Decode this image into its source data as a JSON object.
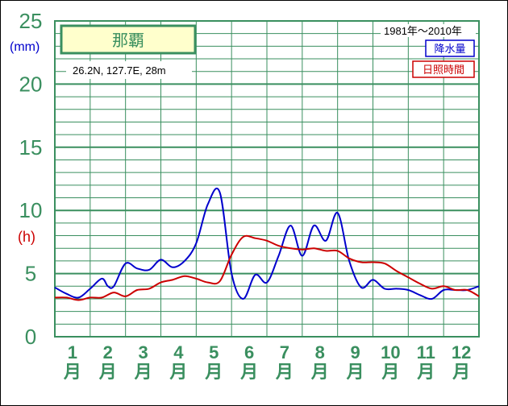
{
  "chart_data": {
    "type": "line",
    "title": "那覇",
    "location": "26.2N,  127.7E,  28m",
    "period": "1981年〜2010年",
    "y_unit_rain": "(mm)",
    "y_unit_sun": "(h)",
    "ylim": [
      0,
      25
    ],
    "yticks": [
      "0",
      "5",
      "10",
      "15",
      "20",
      "25"
    ],
    "month_numbers": [
      "1",
      "2",
      "3",
      "4",
      "5",
      "6",
      "7",
      "8",
      "9",
      "10",
      "11",
      "12"
    ],
    "month_suffix": "月",
    "x_range": [
      1,
      13
    ],
    "grid": true,
    "series": [
      {
        "name": "降水量",
        "color": "#0000cc",
        "x": [
          1,
          1.33,
          1.67,
          2.0,
          2.33,
          2.5,
          2.67,
          3.0,
          3.33,
          3.67,
          4.0,
          4.33,
          4.67,
          5.0,
          5.33,
          5.67,
          6.0,
          6.33,
          6.67,
          7.0,
          7.33,
          7.67,
          8.0,
          8.33,
          8.67,
          9.0,
          9.33,
          9.67,
          10.0,
          10.33,
          10.67,
          11.0,
          11.33,
          11.67,
          12.0,
          12.33,
          12.67,
          13.0
        ],
        "y": [
          3.9,
          3.4,
          3.1,
          3.8,
          4.6,
          4.0,
          4.0,
          5.8,
          5.4,
          5.3,
          6.1,
          5.5,
          6.0,
          7.4,
          10.5,
          11.4,
          5.0,
          3.0,
          4.9,
          4.3,
          6.4,
          8.8,
          6.4,
          8.8,
          7.6,
          9.8,
          6.0,
          3.9,
          4.5,
          3.8,
          3.8,
          3.7,
          3.3,
          3.0,
          3.7,
          3.7,
          3.7,
          4.0
        ]
      },
      {
        "name": "日照時間",
        "color": "#cc0000",
        "x": [
          1,
          1.33,
          1.67,
          2.0,
          2.33,
          2.67,
          3.0,
          3.33,
          3.67,
          4.0,
          4.33,
          4.67,
          5.0,
          5.33,
          5.67,
          6.0,
          6.33,
          6.67,
          7.0,
          7.33,
          7.67,
          8.0,
          8.33,
          8.67,
          9.0,
          9.33,
          9.67,
          10.0,
          10.33,
          10.67,
          11.0,
          11.33,
          11.67,
          12.0,
          12.33,
          12.67,
          13.0
        ],
        "y": [
          3.1,
          3.1,
          2.9,
          3.1,
          3.1,
          3.5,
          3.2,
          3.7,
          3.8,
          4.3,
          4.5,
          4.8,
          4.6,
          4.3,
          4.4,
          6.5,
          7.9,
          7.8,
          7.6,
          7.2,
          7.0,
          6.9,
          7.0,
          6.8,
          6.8,
          6.2,
          5.9,
          5.9,
          5.8,
          5.2,
          4.7,
          4.2,
          3.8,
          4.0,
          3.7,
          3.7,
          3.2
        ]
      }
    ]
  }
}
